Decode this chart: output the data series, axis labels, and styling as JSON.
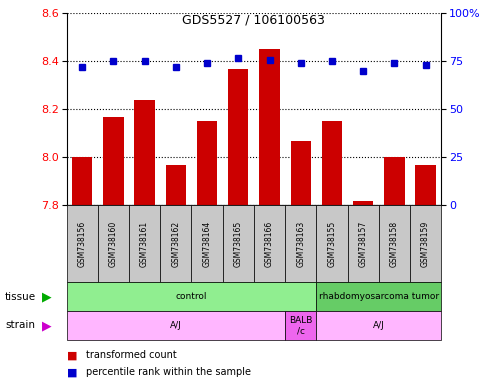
{
  "title": "GDS5527 / 106100563",
  "samples": [
    "GSM738156",
    "GSM738160",
    "GSM738161",
    "GSM738162",
    "GSM738164",
    "GSM738165",
    "GSM738166",
    "GSM738163",
    "GSM738155",
    "GSM738157",
    "GSM738158",
    "GSM738159"
  ],
  "red_values": [
    8.0,
    8.17,
    8.24,
    7.97,
    8.15,
    8.37,
    8.45,
    8.07,
    8.15,
    7.82,
    8.0,
    7.97
  ],
  "blue_values": [
    72,
    75,
    75,
    72,
    74,
    77,
    76,
    74,
    75,
    70,
    74,
    73
  ],
  "ylim_left": [
    7.8,
    8.6
  ],
  "ylim_right": [
    0,
    100
  ],
  "yticks_left": [
    7.8,
    8.0,
    8.2,
    8.4,
    8.6
  ],
  "yticks_right": [
    0,
    25,
    50,
    75,
    100
  ],
  "bar_color": "#cc0000",
  "dot_color": "#0000cc",
  "sample_bg_color": "#c8c8c8",
  "plot_bg": "#ffffff",
  "legend_red": "transformed count",
  "legend_blue": "percentile rank within the sample",
  "tissue_groups": [
    {
      "label": "control",
      "start": 0,
      "end": 8,
      "color": "#90ee90"
    },
    {
      "label": "rhabdomyosarcoma tumor",
      "start": 8,
      "end": 12,
      "color": "#66cc66"
    }
  ],
  "strain_groups": [
    {
      "label": "A/J",
      "start": 0,
      "end": 7,
      "color": "#ffb6ff"
    },
    {
      "label": "BALB\n/c",
      "start": 7,
      "end": 8,
      "color": "#ee66ee"
    },
    {
      "label": "A/J",
      "start": 8,
      "end": 12,
      "color": "#ffb6ff"
    }
  ]
}
